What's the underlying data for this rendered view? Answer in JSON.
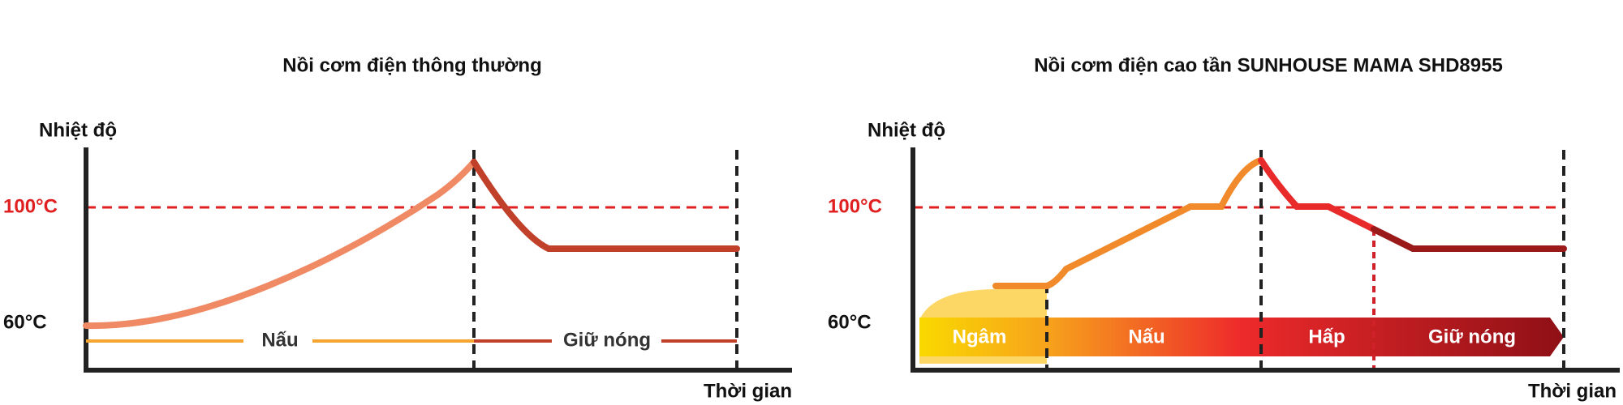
{
  "left": {
    "title": "Nồi cơm điện thông thường",
    "y_label": "Nhiệt độ",
    "x_label": "Thời gian",
    "temp_high": "100°C",
    "temp_low": "60°C",
    "phases": [
      "Nấu",
      "Giữ nóng"
    ]
  },
  "right": {
    "title": "Nồi cơm điện cao tần SUNHOUSE MAMA SHD8955",
    "y_label": "Nhiệt độ",
    "x_label": "Thời gian",
    "temp_high": "100°C",
    "temp_low": "60°C",
    "phases": [
      "Ngâm",
      "Nấu",
      "Hấp",
      "Giữ nóng"
    ]
  }
}
